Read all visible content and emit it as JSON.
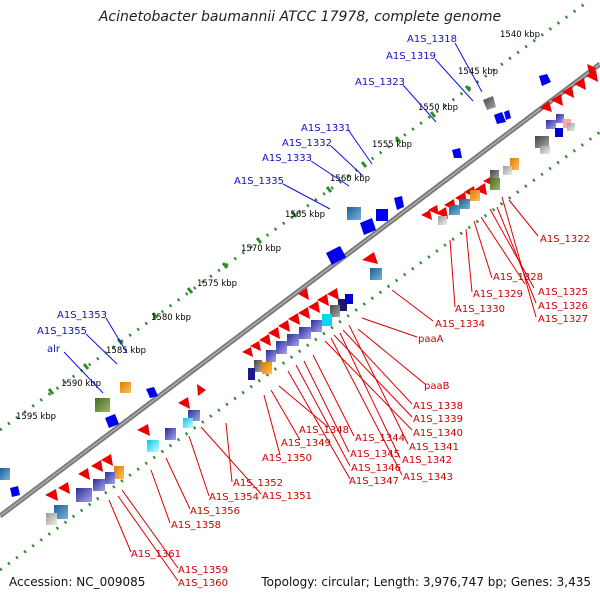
{
  "title": "Acinetobacter baumannii ATCC 17978, complete genome",
  "footer": {
    "accession": "Accession: NC_009085",
    "topology": "Topology: circular; Length: 3,976,747 bp; Genes: 3,435"
  },
  "scale_labels": [
    "1540 kbp",
    "1545 kbp",
    "1550 kbp",
    "1555 kbp",
    "1560 kbp",
    "1565 kbp",
    "1570 kbp",
    "1575 kbp",
    "1580 kbp",
    "1585 kbp",
    "1590 kbp",
    "1595 kbp"
  ],
  "blue_labels": [
    "A1S_1318",
    "A1S_1319",
    "A1S_1323",
    "A1S_1331",
    "A1S_1332",
    "A1S_1333",
    "A1S_1335",
    "A1S_1353",
    "A1S_1355",
    "alr"
  ],
  "red_labels": [
    "A1S_1322",
    "A1S_1328",
    "A1S_1325",
    "A1S_1329",
    "A1S_1326",
    "A1S_1330",
    "A1S_1327",
    "A1S_1334",
    "paaA",
    "paaB",
    "A1S_1338",
    "A1S_1339",
    "A1S_1340",
    "A1S_1348",
    "A1S_1344",
    "A1S_1341",
    "A1S_1349",
    "A1S_1345",
    "A1S_1342",
    "A1S_1350",
    "A1S_1346",
    "A1S_1347",
    "A1S_1343",
    "A1S_1352",
    "A1S_1354",
    "A1S_1351",
    "A1S_1356",
    "A1S_1358",
    "A1S_1361",
    "A1S_1359",
    "A1S_1360"
  ],
  "colors": {
    "backbone": "#777777",
    "dots": "#2e8b2e",
    "forward_gene": "#0000ee",
    "reverse_gene": "#ee0000",
    "label_blue": "#1010c0",
    "label_red": "#cc0000"
  }
}
